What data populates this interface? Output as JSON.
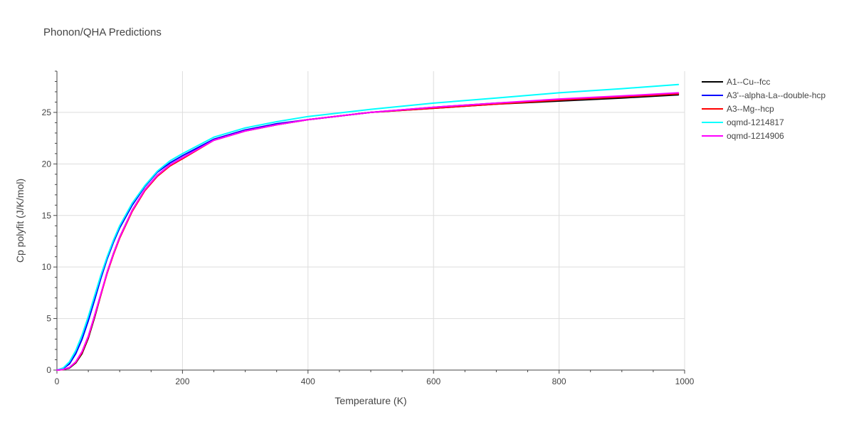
{
  "chart_data": {
    "type": "line",
    "title": "Phonon/QHA Predictions",
    "xlabel": "Temperature (K)",
    "ylabel": "Cp polyfit (J/K/mol)",
    "xlim": [
      0,
      1000
    ],
    "ylim": [
      0,
      29
    ],
    "x_ticks": [
      0,
      200,
      400,
      600,
      800,
      1000
    ],
    "y_ticks": [
      0,
      5,
      10,
      15,
      20,
      25
    ],
    "grid": true,
    "legend_position": "top-right",
    "x": [
      0,
      10,
      20,
      30,
      40,
      50,
      60,
      70,
      80,
      90,
      100,
      120,
      140,
      160,
      180,
      200,
      250,
      300,
      350,
      400,
      500,
      600,
      700,
      800,
      900,
      990
    ],
    "series": [
      {
        "name": "A1--Cu--fcc",
        "color": "#000000",
        "values": [
          0,
          0.05,
          0.2,
          0.7,
          1.6,
          3.1,
          5.1,
          7.3,
          9.5,
          11.3,
          12.9,
          15.5,
          17.5,
          18.9,
          19.9,
          20.6,
          22.3,
          23.2,
          23.8,
          24.3,
          25.0,
          25.4,
          25.8,
          26.1,
          26.4,
          26.7
        ]
      },
      {
        "name": "A3'--alpha-La--double-hcp",
        "color": "#0000ff",
        "values": [
          0,
          0.15,
          0.6,
          1.6,
          3.0,
          4.8,
          6.8,
          8.9,
          10.8,
          12.4,
          13.8,
          16.0,
          17.8,
          19.2,
          20.1,
          20.8,
          22.4,
          23.3,
          23.9,
          24.3,
          25.0,
          25.5,
          25.9,
          26.2,
          26.5,
          26.8
        ]
      },
      {
        "name": "A3--Mg--hcp",
        "color": "#ff0000",
        "values": [
          0,
          0.05,
          0.25,
          0.75,
          1.7,
          3.2,
          5.2,
          7.3,
          9.4,
          11.2,
          12.8,
          15.4,
          17.4,
          18.8,
          19.8,
          20.5,
          22.3,
          23.2,
          23.8,
          24.3,
          25.0,
          25.4,
          25.8,
          26.2,
          26.5,
          26.8
        ]
      },
      {
        "name": "oqmd-1214817",
        "color": "#00ffff",
        "values": [
          0,
          0.2,
          0.8,
          1.9,
          3.4,
          5.2,
          7.2,
          9.2,
          11.0,
          12.6,
          14.0,
          16.2,
          17.9,
          19.3,
          20.3,
          21.0,
          22.6,
          23.5,
          24.1,
          24.6,
          25.3,
          25.9,
          26.4,
          26.9,
          27.3,
          27.7
        ]
      },
      {
        "name": "oqmd-1214906",
        "color": "#ff00ff",
        "values": [
          0,
          0.06,
          0.25,
          0.8,
          1.8,
          3.3,
          5.3,
          7.4,
          9.5,
          11.3,
          12.9,
          15.5,
          17.5,
          18.9,
          19.9,
          20.6,
          22.3,
          23.2,
          23.8,
          24.3,
          25.0,
          25.5,
          25.9,
          26.3,
          26.6,
          26.9
        ]
      }
    ]
  }
}
